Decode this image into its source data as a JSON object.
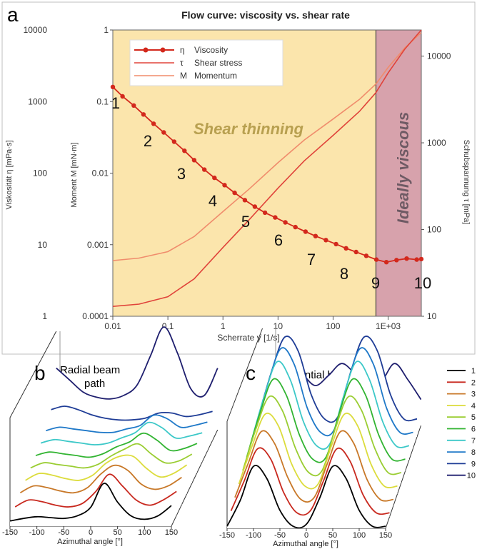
{
  "panel_a": {
    "letter": "a",
    "title": "Flow curve: viscosity vs. shear rate",
    "region_left_label": "Shear thinning",
    "region_right_label": "Ideally viscous",
    "legend": [
      {
        "symbol": "η",
        "name": "Viscosity"
      },
      {
        "symbol": "τ",
        "name": "Shear stress"
      },
      {
        "symbol": "M",
        "name": "Momentum"
      }
    ],
    "point_numbers": [
      "1",
      "2",
      "3",
      "4",
      "5",
      "6",
      "7",
      "8",
      "9",
      "10"
    ],
    "colors": {
      "shear_thinning_bg": "#FBE5AC",
      "ideally_viscous_bg": "#D7A2AC",
      "viscosity": "#D3281C",
      "shear_stress": "#E0433A",
      "momentum": "#F08C6C",
      "frame": "#C8C8C8"
    }
  },
  "panel_b": {
    "letter": "b",
    "label_line1": "Radial beam",
    "label_line2": "path",
    "xlabel": "Azimuthal angle [°]",
    "x_ticks": [
      "-150",
      "-100",
      "-50",
      "0",
      "50",
      "100",
      "150"
    ]
  },
  "panel_c": {
    "letter": "c",
    "label_line1": "Tangential beam",
    "label_line2": "path",
    "xlabel": "Azimuthal angle [°]",
    "x_ticks": [
      "-150",
      "-100",
      "-50",
      "0",
      "50",
      "100",
      "150"
    ]
  },
  "legend_bc": {
    "entries": [
      "1",
      "2",
      "3",
      "4",
      "5",
      "6",
      "7",
      "8",
      "9",
      "10"
    ],
    "colors": [
      "#000000",
      "#C8281E",
      "#C87828",
      "#DCDC3C",
      "#9ACD32",
      "#32B432",
      "#3CC8C8",
      "#1E78C8",
      "#1E3C96",
      "#1E1E6E"
    ]
  },
  "chart_data": [
    {
      "type": "line",
      "title": "Flow curve: viscosity vs. shear rate",
      "xlabel": "Scherrate γ̇ [1/s]",
      "x_scale": "log",
      "xlim": [
        0.01,
        4000
      ],
      "x_ticks": [
        "0.01",
        "0.1",
        "1",
        "10",
        "100",
        "1E+03"
      ],
      "axes": [
        {
          "side": "left-outer",
          "label": "Viskosität η [mPa·s]",
          "scale": "log",
          "range": [
            1,
            10000
          ],
          "ticks": [
            "1",
            "10",
            "100",
            "1000",
            "10000"
          ]
        },
        {
          "side": "left-inner",
          "label": "Moment M [mN·m]",
          "scale": "log",
          "range": [
            0.0001,
            1
          ],
          "ticks": [
            "0.0001",
            "0.001",
            "0.01",
            "0.1",
            "1"
          ]
        },
        {
          "side": "right",
          "label": "Schubspannung τ [mPa]",
          "scale": "log",
          "range": [
            10,
            20000
          ],
          "ticks": [
            "10",
            "100",
            "1000",
            "10000"
          ]
        }
      ],
      "series": [
        {
          "name": "Viscosity",
          "axis": "left-outer",
          "markers": true,
          "x": [
            0.01,
            0.015,
            0.024,
            0.036,
            0.055,
            0.084,
            0.13,
            0.2,
            0.3,
            0.46,
            0.7,
            1.07,
            1.63,
            2.5,
            3.8,
            5.8,
            8.9,
            13.6,
            20.7,
            31.6,
            48,
            74,
            113,
            172,
            262,
            400,
            610,
            930,
            1420,
            2170,
            3300,
            4000
          ],
          "y": [
            1600,
            1180,
            880,
            660,
            490,
            370,
            275,
            205,
            152,
            112,
            86,
            68,
            53,
            42,
            34,
            28,
            24,
            20.5,
            17.6,
            15.2,
            13.2,
            11.6,
            10.2,
            8.9,
            7.9,
            7.0,
            6.2,
            5.7,
            6.1,
            6.4,
            6.2,
            6.3
          ]
        },
        {
          "name": "Shear stress",
          "axis": "right",
          "x": [
            0.01,
            0.03,
            0.1,
            0.3,
            1,
            3,
            10,
            30,
            100,
            300,
            600,
            1000,
            2000,
            4000
          ],
          "y": [
            13,
            13.8,
            16.8,
            27,
            62,
            130,
            300,
            620,
            1220,
            2300,
            3800,
            6400,
            12000,
            20000
          ]
        },
        {
          "name": "Momentum",
          "axis": "left-inner",
          "x": [
            0.01,
            0.03,
            0.1,
            0.3,
            1,
            3,
            10,
            30,
            100,
            300,
            600,
            1000,
            2000,
            4000
          ],
          "y": [
            0.0006,
            0.00065,
            0.0008,
            0.0013,
            0.0029,
            0.006,
            0.014,
            0.029,
            0.057,
            0.107,
            0.176,
            0.3,
            0.56,
            0.92
          ]
        }
      ],
      "regions": [
        {
          "label": "Shear thinning",
          "x_from": 0.01,
          "x_to": 600
        },
        {
          "label": "Ideally viscous",
          "x_from": 600,
          "x_to": 4000
        }
      ],
      "legend_position": "top-left"
    },
    {
      "type": "line",
      "xlabel": "Azimuthal angle [°]",
      "x": [
        -150,
        -125,
        -100,
        -75,
        -50,
        -25,
        0,
        25,
        50,
        75,
        100,
        125,
        150
      ],
      "series": [
        {
          "name": "1",
          "values": [
            0.06,
            0.09,
            0.11,
            0.1,
            0.09,
            0.12,
            0.22,
            0.5,
            0.28,
            0.12,
            0.08,
            0.12,
            0.24
          ]
        },
        {
          "name": "2",
          "values": [
            0.1,
            0.18,
            0.16,
            0.12,
            0.1,
            0.14,
            0.28,
            0.48,
            0.34,
            0.18,
            0.12,
            0.18,
            0.28
          ]
        },
        {
          "name": "3",
          "values": [
            0.14,
            0.22,
            0.2,
            0.16,
            0.14,
            0.2,
            0.36,
            0.46,
            0.4,
            0.24,
            0.18,
            0.22,
            0.32
          ]
        },
        {
          "name": "4",
          "values": [
            0.16,
            0.24,
            0.22,
            0.18,
            0.16,
            0.22,
            0.36,
            0.44,
            0.44,
            0.3,
            0.2,
            0.24,
            0.34
          ]
        },
        {
          "name": "5",
          "values": [
            0.18,
            0.24,
            0.22,
            0.2,
            0.18,
            0.22,
            0.32,
            0.4,
            0.46,
            0.34,
            0.24,
            0.26,
            0.34
          ]
        },
        {
          "name": "6",
          "values": [
            0.2,
            0.24,
            0.22,
            0.2,
            0.18,
            0.22,
            0.3,
            0.36,
            0.46,
            0.38,
            0.26,
            0.28,
            0.34
          ]
        },
        {
          "name": "7",
          "values": [
            0.22,
            0.26,
            0.24,
            0.22,
            0.2,
            0.22,
            0.28,
            0.34,
            0.46,
            0.4,
            0.28,
            0.3,
            0.34
          ]
        },
        {
          "name": "8",
          "values": [
            0.24,
            0.28,
            0.26,
            0.24,
            0.22,
            0.22,
            0.26,
            0.3,
            0.42,
            0.38,
            0.28,
            0.3,
            0.34
          ]
        },
        {
          "name": "9",
          "values": [
            0.36,
            0.4,
            0.36,
            0.3,
            0.26,
            0.24,
            0.24,
            0.26,
            0.32,
            0.32,
            0.28,
            0.3,
            0.34
          ]
        },
        {
          "name": "10",
          "values": [
            0.72,
            0.58,
            0.44,
            0.38,
            0.36,
            0.4,
            0.52,
            0.86,
            1.2,
            0.9,
            0.48,
            0.4,
            0.72
          ]
        }
      ]
    },
    {
      "type": "line",
      "xlabel": "Azimuthal angle [°]",
      "x": [
        -150,
        -125,
        -100,
        -75,
        -50,
        -25,
        0,
        25,
        50,
        75,
        100,
        125,
        150
      ],
      "series": [
        {
          "name": "1",
          "values": [
            0.02,
            0.28,
            0.62,
            0.5,
            0.18,
            0.02,
            0.04,
            0.3,
            0.62,
            0.5,
            0.18,
            0.02,
            0.02
          ]
        },
        {
          "name": "2",
          "values": [
            0.06,
            0.36,
            0.68,
            0.58,
            0.24,
            0.04,
            0.06,
            0.36,
            0.68,
            0.56,
            0.22,
            0.04,
            0.04
          ]
        },
        {
          "name": "3",
          "values": [
            0.08,
            0.42,
            0.74,
            0.62,
            0.28,
            0.06,
            0.08,
            0.42,
            0.74,
            0.62,
            0.26,
            0.06,
            0.06
          ]
        },
        {
          "name": "4",
          "values": [
            0.1,
            0.48,
            0.8,
            0.68,
            0.3,
            0.08,
            0.1,
            0.48,
            0.8,
            0.68,
            0.3,
            0.08,
            0.08
          ]
        },
        {
          "name": "5",
          "values": [
            0.12,
            0.54,
            0.86,
            0.72,
            0.34,
            0.1,
            0.12,
            0.54,
            0.86,
            0.72,
            0.34,
            0.1,
            0.1
          ]
        },
        {
          "name": "6",
          "values": [
            0.14,
            0.58,
            0.92,
            0.76,
            0.36,
            0.12,
            0.14,
            0.58,
            0.92,
            0.76,
            0.36,
            0.12,
            0.12
          ]
        },
        {
          "name": "7",
          "values": [
            0.16,
            0.62,
            0.98,
            0.8,
            0.38,
            0.14,
            0.16,
            0.62,
            0.98,
            0.8,
            0.38,
            0.14,
            0.14
          ]
        },
        {
          "name": "8",
          "values": [
            0.18,
            0.64,
            1.0,
            0.84,
            0.4,
            0.16,
            0.18,
            0.64,
            1.0,
            0.84,
            0.4,
            0.16,
            0.16
          ]
        },
        {
          "name": "9",
          "values": [
            0.2,
            0.66,
            1.0,
            0.86,
            0.42,
            0.18,
            0.2,
            0.66,
            1.0,
            0.86,
            0.42,
            0.18,
            0.18
          ]
        },
        {
          "name": "10",
          "values": [
            0.24,
            0.44,
            0.64,
            0.52,
            0.4,
            0.5,
            0.62,
            0.52,
            0.4,
            0.44,
            0.62,
            0.46,
            0.26
          ]
        }
      ]
    }
  ]
}
